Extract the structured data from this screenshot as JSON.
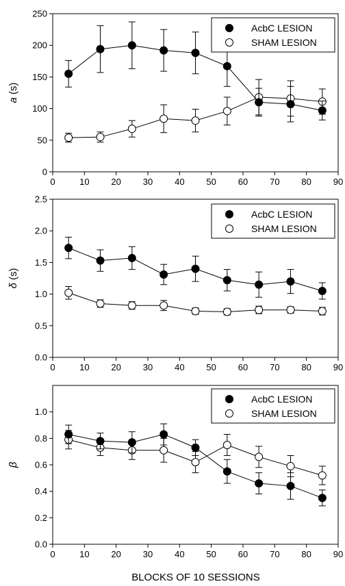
{
  "figure": {
    "xlabel": "BLOCKS OF 10 SESSIONS"
  },
  "chart_data": [
    {
      "type": "scatter",
      "ylabel": "a (s)",
      "ylabel_var": "a",
      "ylabel_unit": " (s)",
      "xlim": [
        0,
        90
      ],
      "ylim": [
        0,
        250
      ],
      "xticks": [
        "0",
        "10",
        "20",
        "30",
        "40",
        "50",
        "60",
        "70",
        "80",
        "90"
      ],
      "yticks": [
        "0",
        "50",
        "100",
        "150",
        "200",
        "250"
      ],
      "x": [
        5,
        15,
        25,
        35,
        45,
        55,
        65,
        75,
        85
      ],
      "grid": false,
      "legend_position": "top-right",
      "series": [
        {
          "name": "AcbC LESION",
          "marker": "filled-circle",
          "color": "#000000",
          "values": [
            155,
            194,
            200,
            192,
            188,
            167,
            110,
            107,
            97
          ],
          "errors": [
            21,
            37,
            37,
            33,
            33,
            32,
            22,
            28,
            15
          ]
        },
        {
          "name": "SHAM LESION",
          "marker": "open-circle",
          "color": "#000000",
          "values": [
            54,
            55,
            68,
            84,
            81,
            96,
            118,
            116,
            111
          ],
          "errors": [
            7,
            8,
            13,
            22,
            18,
            22,
            28,
            28,
            20
          ]
        }
      ]
    },
    {
      "type": "scatter",
      "ylabel": "δ (s)",
      "ylabel_var": "δ",
      "ylabel_unit": " (s)",
      "xlim": [
        0,
        90
      ],
      "ylim": [
        0,
        2.5
      ],
      "xticks": [
        "0",
        "10",
        "20",
        "30",
        "40",
        "50",
        "60",
        "70",
        "80",
        "90"
      ],
      "yticks": [
        "0.0",
        "0.5",
        "1.0",
        "1.5",
        "2.0",
        "2.5"
      ],
      "x": [
        5,
        15,
        25,
        35,
        45,
        55,
        65,
        75,
        85
      ],
      "grid": false,
      "legend_position": "top-right",
      "series": [
        {
          "name": "AcbC LESION",
          "marker": "filled-circle",
          "color": "#000000",
          "values": [
            1.73,
            1.53,
            1.57,
            1.31,
            1.4,
            1.22,
            1.15,
            1.2,
            1.05
          ],
          "errors": [
            0.17,
            0.17,
            0.18,
            0.16,
            0.2,
            0.17,
            0.2,
            0.19,
            0.13
          ]
        },
        {
          "name": "SHAM LESION",
          "marker": "open-circle",
          "color": "#000000",
          "values": [
            1.02,
            0.85,
            0.82,
            0.82,
            0.73,
            0.72,
            0.75,
            0.75,
            0.73
          ],
          "errors": [
            0.1,
            0.06,
            0.06,
            0.08,
            0.05,
            0.05,
            0.06,
            0.05,
            0.06
          ]
        }
      ]
    },
    {
      "type": "scatter",
      "ylabel": "β",
      "ylabel_var": "β",
      "ylabel_unit": "",
      "xlim": [
        0,
        90
      ],
      "ylim": [
        0,
        1.2
      ],
      "xticks": [
        "0",
        "10",
        "20",
        "30",
        "40",
        "50",
        "60",
        "70",
        "80",
        "90"
      ],
      "yticks": [
        "0.0",
        "0.2",
        "0.4",
        "0.6",
        "0.8",
        "1.0"
      ],
      "x": [
        5,
        15,
        25,
        35,
        45,
        55,
        65,
        75,
        85
      ],
      "grid": false,
      "legend_position": "top-right",
      "series": [
        {
          "name": "AcbC LESION",
          "marker": "filled-circle",
          "color": "#000000",
          "values": [
            0.83,
            0.78,
            0.77,
            0.83,
            0.73,
            0.55,
            0.46,
            0.44,
            0.35
          ],
          "errors": [
            0.07,
            0.06,
            0.08,
            0.08,
            0.06,
            0.09,
            0.08,
            0.1,
            0.06
          ]
        },
        {
          "name": "SHAM LESION",
          "marker": "open-circle",
          "color": "#000000",
          "values": [
            0.79,
            0.73,
            0.71,
            0.71,
            0.62,
            0.75,
            0.66,
            0.59,
            0.52
          ],
          "errors": [
            0.07,
            0.06,
            0.07,
            0.09,
            0.08,
            0.08,
            0.08,
            0.08,
            0.07
          ]
        }
      ]
    }
  ]
}
